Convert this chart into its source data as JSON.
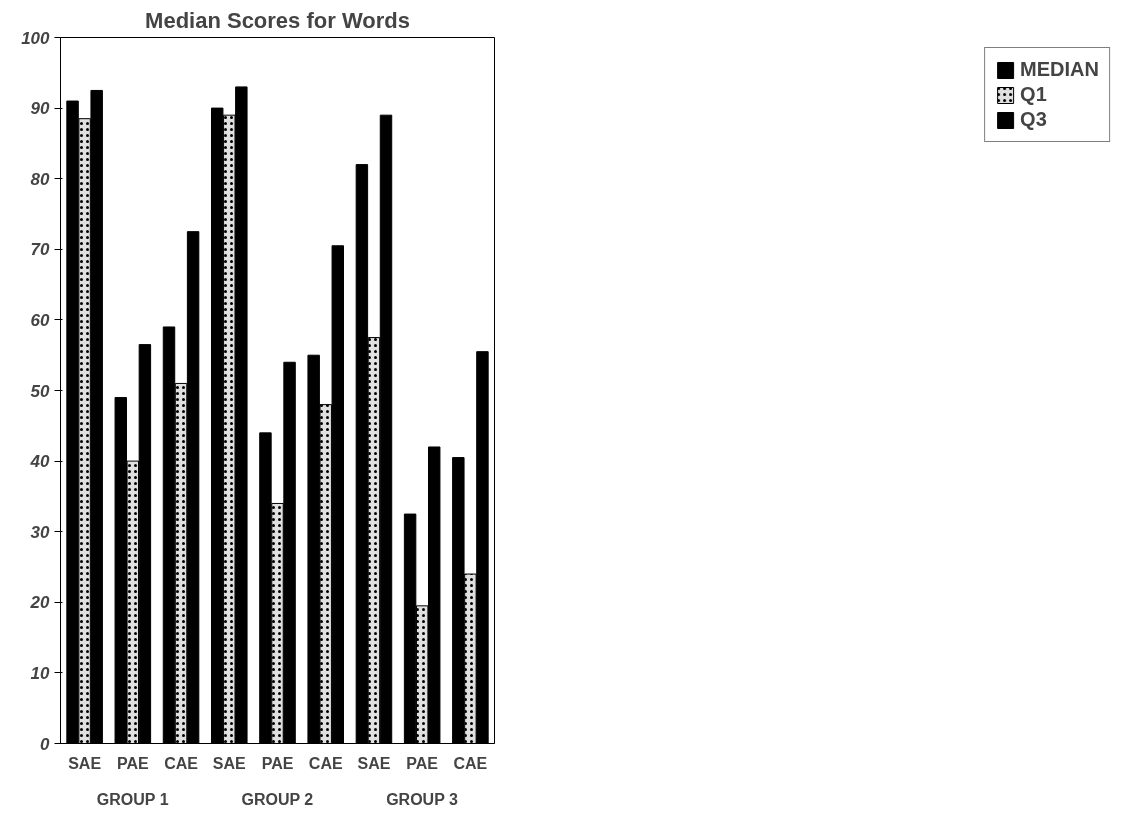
{
  "chart_data": {
    "type": "bar",
    "title": "Median Scores for Words",
    "categories": [
      "SAE",
      "PAE",
      "CAE",
      "SAE",
      "PAE",
      "CAE",
      "SAE",
      "PAE",
      "CAE"
    ],
    "annotations": [
      "GROUP 1",
      "GROUP 2",
      "GROUP 3"
    ],
    "series": [
      {
        "name": "MEDIAN",
        "color": "#000000",
        "values": [
          91,
          49,
          59,
          90,
          44,
          55,
          82,
          32.5,
          40.5
        ]
      },
      {
        "name": "Q1",
        "color": "#e0e0e0",
        "values": [
          88.5,
          40,
          51,
          89,
          34,
          48,
          57.5,
          19.5,
          24
        ]
      },
      {
        "name": "Q3",
        "color": "#000000",
        "values": [
          92.5,
          56.5,
          72.5,
          93,
          54,
          70.5,
          89,
          42,
          55.5
        ]
      }
    ],
    "ylim": [
      0,
      100
    ],
    "yticks": [
      0,
      10,
      20,
      30,
      40,
      50,
      60,
      70,
      80,
      90,
      100
    ],
    "grid": false,
    "legend": "right"
  }
}
